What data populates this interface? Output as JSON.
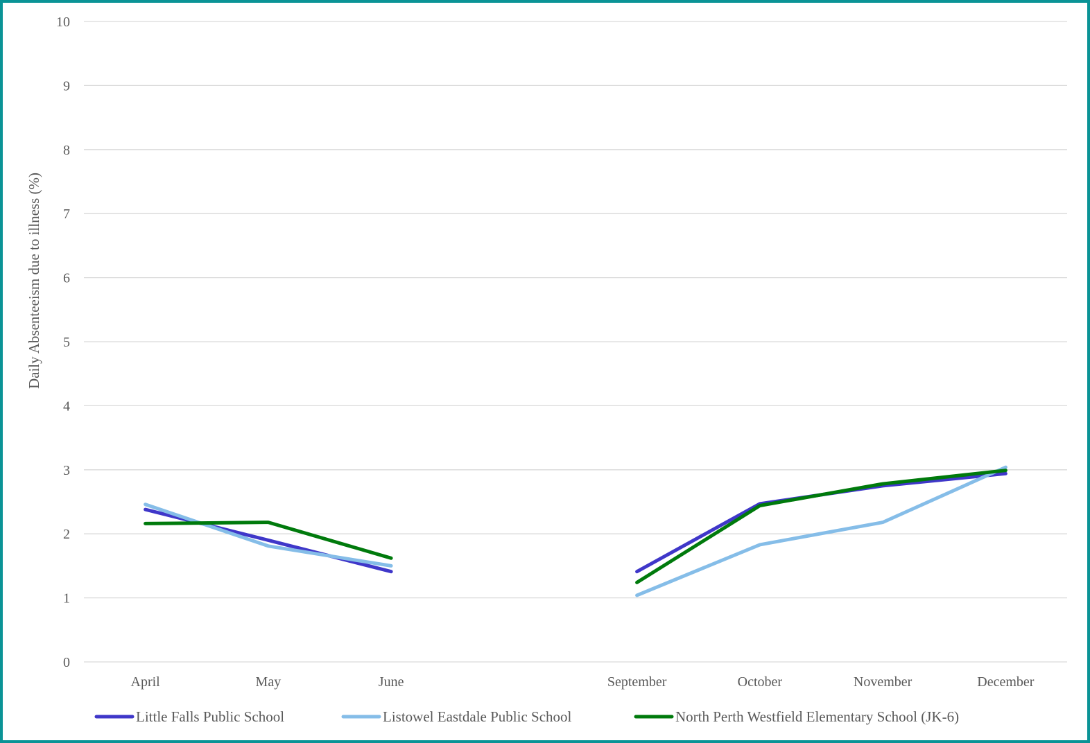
{
  "chart_data": {
    "type": "line",
    "title": "",
    "xlabel": "",
    "ylabel": "Daily Absenteeism due to illness (%)",
    "ylim": [
      0,
      10
    ],
    "yticks": [
      0,
      1,
      2,
      3,
      4,
      5,
      6,
      7,
      8,
      9,
      10
    ],
    "categories": [
      "April",
      "May",
      "June",
      "",
      "September",
      "October",
      "November",
      "December"
    ],
    "grid": true,
    "legend_position": "bottom",
    "series": [
      {
        "name": "Little Falls Public School",
        "color": "#3f37c9",
        "values": [
          2.38,
          1.9,
          1.41,
          null,
          1.41,
          2.47,
          2.75,
          2.94
        ]
      },
      {
        "name": "Listowel Eastdale Public School",
        "color": "#85bde8",
        "values": [
          2.46,
          1.81,
          1.5,
          null,
          1.04,
          1.83,
          2.18,
          3.04
        ]
      },
      {
        "name": "North Perth Westfield Elementary School (JK-6)",
        "color": "#007a0c",
        "values": [
          2.16,
          2.18,
          1.62,
          null,
          1.24,
          2.44,
          2.78,
          2.99
        ]
      }
    ]
  }
}
